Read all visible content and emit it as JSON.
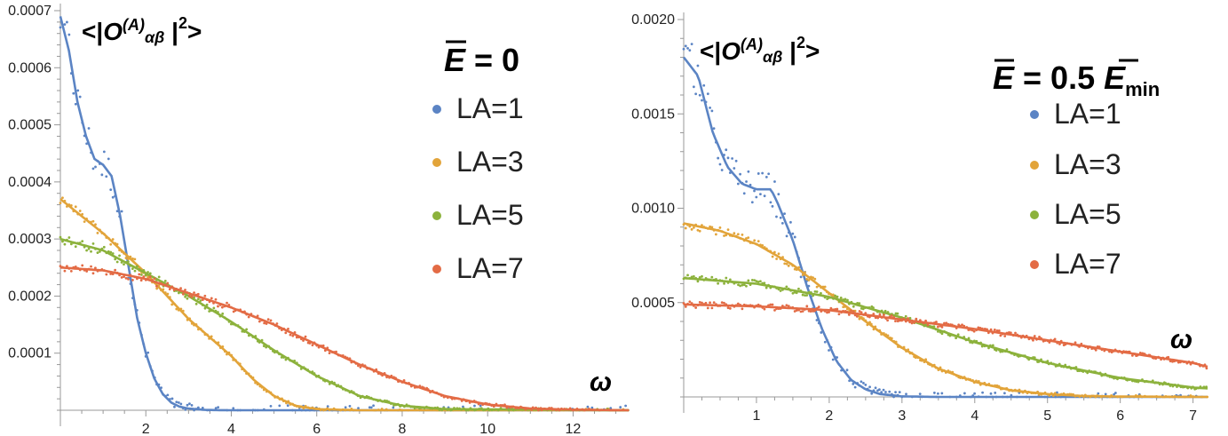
{
  "chart_data": [
    {
      "type": "line",
      "ylabel": "<|O(A)αβ |2>",
      "ylabel_parts": {
        "lt": "<|",
        "O": "O",
        "sup": "(A)",
        "sub": "αβ",
        "bar": " |",
        "pow": "2",
        "gt": ">"
      },
      "xlabel": "ω",
      "annotation": {
        "text": " = 0",
        "symbol": "E",
        "overbar": true
      },
      "xlim": [
        0,
        13.3
      ],
      "ylim": [
        0,
        0.0007
      ],
      "xticks": [
        2,
        4,
        6,
        8,
        10,
        12
      ],
      "yticks": [
        0.0001,
        0.0002,
        0.0003,
        0.0004,
        0.0005,
        0.0006,
        0.0007
      ],
      "ytick_labels": [
        "0.0001",
        "0.0002",
        "0.0003",
        "0.0004",
        "0.0005",
        "0.0006",
        "0.0007"
      ],
      "legend_position": "right",
      "series": [
        {
          "name": "LA=1",
          "color": "#5b84c4",
          "x": [
            0,
            0.2,
            0.4,
            0.6,
            0.8,
            1.0,
            1.2,
            1.4,
            1.6,
            1.8,
            2.0,
            2.2,
            2.4,
            2.6,
            2.8,
            3.0,
            3.4,
            4.0,
            13.3
          ],
          "y": [
            0.00069,
            0.00063,
            0.00054,
            0.00048,
            0.00044,
            0.00043,
            0.00041,
            0.00034,
            0.00025,
            0.00016,
            0.0001,
            5.5e-05,
            2.8e-05,
            1.3e-05,
            6e-06,
            3e-06,
            5e-07,
            0,
            0
          ]
        },
        {
          "name": "LA=3",
          "color": "#e2a43a",
          "x": [
            0,
            1,
            2,
            3,
            4,
            4.5,
            5,
            5.5,
            6,
            7,
            13.3
          ],
          "y": [
            0.00037,
            0.00031,
            0.00024,
            0.00016,
            9.5e-05,
            5.5e-05,
            2.5e-05,
            8e-06,
            2e-06,
            0,
            0
          ]
        },
        {
          "name": "LA=5",
          "color": "#8cb23c",
          "x": [
            0,
            1,
            2,
            3,
            4,
            5,
            6,
            7,
            8,
            9,
            13.3
          ],
          "y": [
            0.0003,
            0.00028,
            0.00024,
            0.0002,
            0.000155,
            0.000105,
            6e-05,
            2.5e-05,
            8e-06,
            2e-06,
            0
          ]
        },
        {
          "name": "LA=7",
          "color": "#e36b45",
          "x": [
            0,
            1,
            2,
            3,
            4,
            5,
            6,
            7,
            8,
            9,
            10,
            11,
            12,
            13.3
          ],
          "y": [
            0.00025,
            0.000245,
            0.00023,
            0.000205,
            0.00018,
            0.00015,
            0.000115,
            8e-05,
            5e-05,
            2.5e-05,
            1e-05,
            3e-06,
            1e-06,
            0
          ]
        }
      ]
    },
    {
      "type": "line",
      "ylabel": "<|O(A)αβ |2>",
      "ylabel_parts": {
        "lt": "<|",
        "O": "O",
        "sup": "(A)",
        "sub": "αβ",
        "bar": " |",
        "pow": "2",
        "gt": ">"
      },
      "xlabel": "ω",
      "annotation": {
        "text": " = 0.5 ",
        "symbol": "E",
        "symbol2": "E",
        "sub": "min",
        "overbar": true
      },
      "xlim": [
        0,
        7.2
      ],
      "ylim": [
        0,
        0.002
      ],
      "xticks": [
        1,
        2,
        3,
        4,
        5,
        6,
        7
      ],
      "yticks": [
        0.0005,
        0.001,
        0.0015,
        0.002
      ],
      "ytick_labels": [
        "0.0005",
        "0.0010",
        "0.0015",
        "0.0020"
      ],
      "legend_position": "right",
      "series": [
        {
          "name": "LA=1",
          "color": "#5b84c4",
          "x": [
            0,
            0.2,
            0.4,
            0.6,
            0.8,
            1.0,
            1.2,
            1.3,
            1.5,
            1.7,
            1.9,
            2.1,
            2.3,
            2.5,
            2.7,
            3.0,
            3.5,
            7.2
          ],
          "y": [
            0.0018,
            0.0017,
            0.0014,
            0.00122,
            0.00113,
            0.0011,
            0.0011,
            0.00102,
            0.00083,
            0.00058,
            0.00036,
            0.00019,
            9e-05,
            4e-05,
            1.5e-05,
            3e-06,
            0,
            0
          ]
        },
        {
          "name": "LA=3",
          "color": "#e2a43a",
          "x": [
            0,
            0.5,
            1.0,
            1.5,
            2.0,
            2.5,
            3.0,
            3.5,
            4.0,
            4.5,
            5.0,
            5.5,
            6.0,
            7.2
          ],
          "y": [
            0.00092,
            0.00088,
            0.00081,
            0.0007,
            0.00055,
            0.0004,
            0.00026,
            0.00015,
            8e-05,
            3.5e-05,
            1.5e-05,
            5e-06,
            2e-06,
            0
          ]
        },
        {
          "name": "LA=5",
          "color": "#8cb23c",
          "x": [
            0,
            1,
            2,
            3,
            4,
            5,
            6,
            7,
            7.2
          ],
          "y": [
            0.00063,
            0.0006,
            0.00053,
            0.00042,
            0.00029,
            0.00018,
            0.0001,
            5e-05,
            4.5e-05
          ]
        },
        {
          "name": "LA=7",
          "color": "#e36b45",
          "x": [
            0,
            1,
            2,
            3,
            4,
            5,
            6,
            7,
            7.2
          ],
          "y": [
            0.00049,
            0.00048,
            0.00046,
            0.00041,
            0.00036,
            0.0003,
            0.00024,
            0.00018,
            0.00016
          ]
        }
      ]
    }
  ]
}
